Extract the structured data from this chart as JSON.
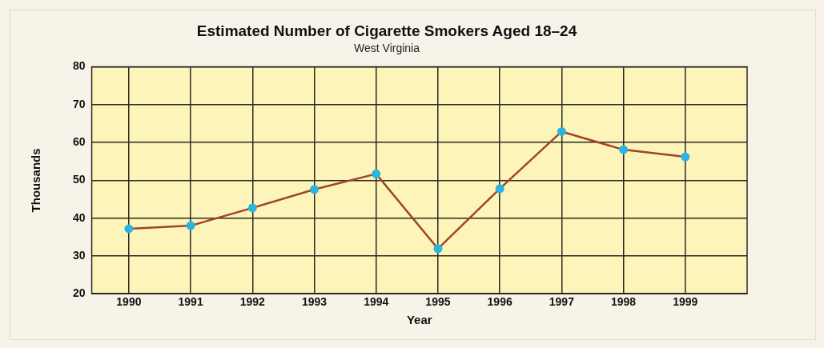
{
  "chart_data": {
    "type": "line",
    "title": "Estimated Number of Cigarette Smokers Aged 18–24",
    "subtitle": "West Virginia",
    "xlabel": "Year",
    "ylabel": "Thousands",
    "x": [
      1990,
      1991,
      1992,
      1993,
      1994,
      1995,
      1996,
      1997,
      1998,
      1999
    ],
    "series": [
      {
        "color": "#a0432c",
        "values": [
          37.2,
          38.0,
          42.7,
          47.6,
          51.7,
          31.9,
          47.8,
          62.9,
          58.1,
          56.2
        ]
      }
    ],
    "xlim": [
      1989.4,
      2000
    ],
    "xticks": [
      1990,
      1991,
      1992,
      1993,
      1994,
      1995,
      1996,
      1997,
      1998,
      1999
    ],
    "ylim": [
      20,
      80
    ],
    "yticks": [
      20,
      30,
      40,
      50,
      60,
      70,
      80
    ],
    "grid": true,
    "legend": false,
    "marker": "circle",
    "line_style": "solid"
  }
}
